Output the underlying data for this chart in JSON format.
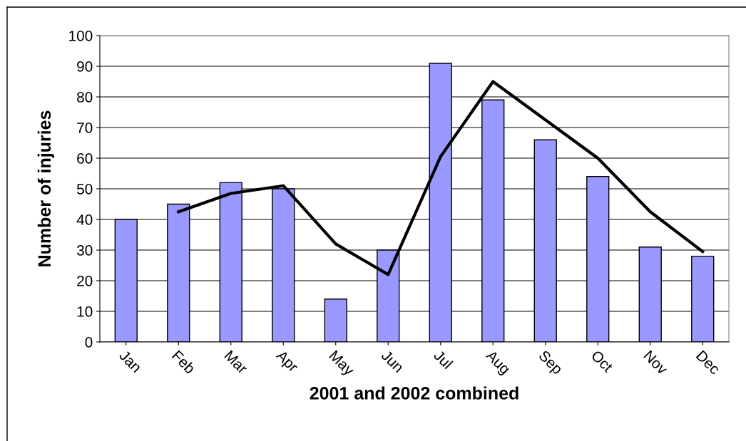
{
  "chart_data": {
    "type": "bar",
    "xlabel": "2001 and 2002 combined",
    "ylabel": "Number of injuries",
    "categories": [
      "Jan",
      "Feb",
      "Mar",
      "Apr",
      "May",
      "Jun",
      "Jul",
      "Aug",
      "Sep",
      "Oct",
      "Nov",
      "Dec"
    ],
    "series": [
      {
        "color": "#9999ff",
        "values": [
          40,
          45,
          52,
          50,
          14,
          30,
          91,
          79,
          66,
          54,
          31,
          28
        ]
      },
      {
        "type": "line",
        "color": "#000000",
        "values": [
          null,
          42.5,
          48.5,
          51,
          32,
          22,
          60.5,
          85,
          72.5,
          60,
          42.5,
          29.5
        ]
      }
    ],
    "ylim": [
      0,
      100
    ],
    "yticks": [
      0,
      10,
      20,
      30,
      40,
      50,
      60,
      70,
      80,
      90,
      100
    ],
    "grid": "y",
    "marker": "none",
    "line_style": "solid"
  }
}
